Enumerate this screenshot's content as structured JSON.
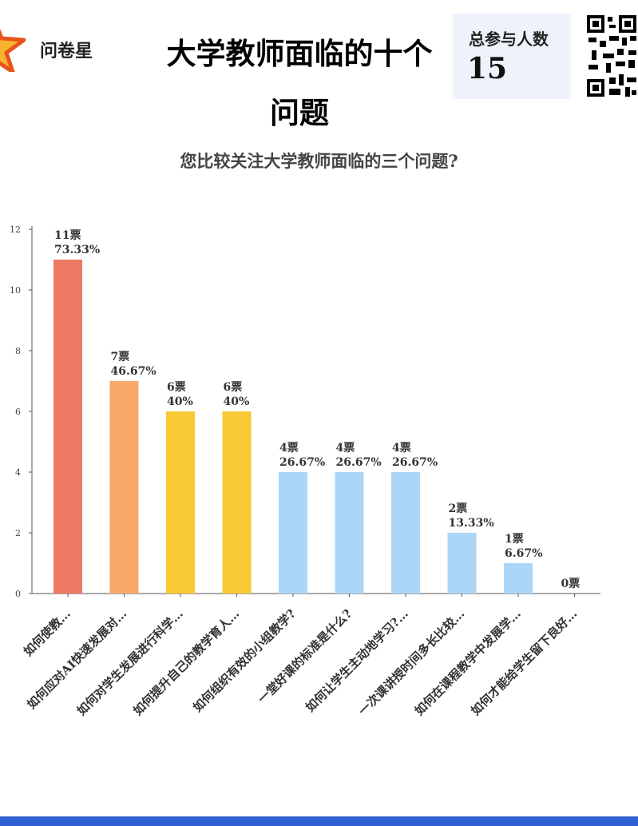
{
  "brand": "问卷星",
  "title_line1": "大学教师面临的十个",
  "title_line2": "问题",
  "stat": {
    "label": "总参与人数",
    "value": "15"
  },
  "question": "您比较关注大学教师面临的三个问题?",
  "colors": {
    "accent_red": "#ec7a63",
    "accent_orange": "#f9aa6b",
    "accent_yellow": "#f9c935",
    "accent_blue": "#abd6f8",
    "footer": "#2f5fd0"
  },
  "chart_data": {
    "type": "bar",
    "ylim": [
      0,
      12
    ],
    "yticks": [
      0,
      2,
      4,
      6,
      8,
      10,
      12
    ],
    "grid": false,
    "categories": [
      "如何使教…",
      "如何应对AI快速发展对…",
      "如何对学生发展进行科学…",
      "如何提升自己的教学育人…",
      "如何组织有效的小组教学?",
      "一堂好课的标准是什么?",
      "如何让学生主动地学习?…",
      "一次课讲授时间多长比较…",
      "如何在课程教学中发展学…",
      "如何才能给学生留下良好…"
    ],
    "values": [
      11,
      7,
      6,
      6,
      4,
      4,
      4,
      2,
      1,
      0
    ],
    "vote_labels": [
      "11票",
      "7票",
      "6票",
      "6票",
      "4票",
      "4票",
      "4票",
      "2票",
      "1票",
      "0票"
    ],
    "percent_labels": [
      "73.33%",
      "46.67%",
      "40%",
      "40%",
      "26.67%",
      "26.67%",
      "26.67%",
      "13.33%",
      "6.67%",
      ""
    ],
    "bar_colors": [
      "#ec7a63",
      "#f9aa6b",
      "#f9c935",
      "#f9c935",
      "#abd6f8",
      "#abd6f8",
      "#abd6f8",
      "#abd6f8",
      "#abd6f8",
      "#abd6f8"
    ]
  }
}
